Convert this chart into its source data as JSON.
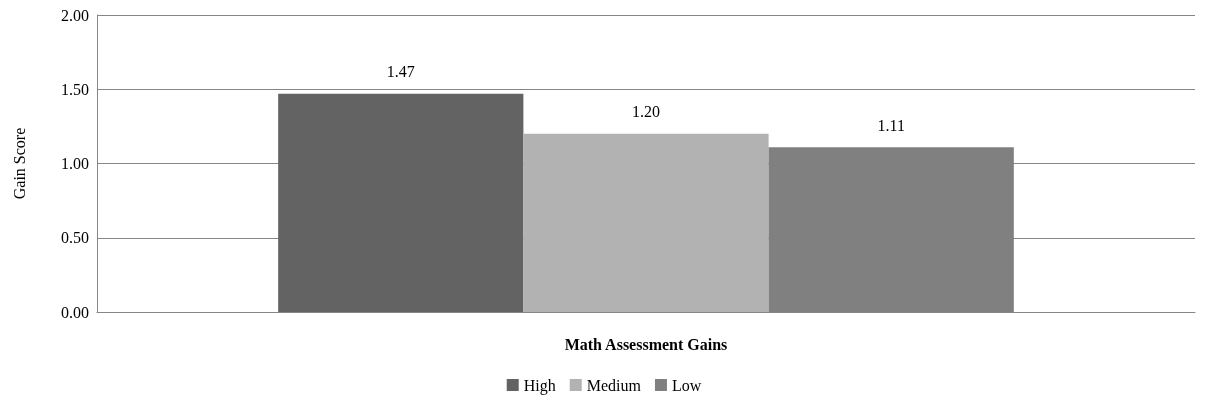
{
  "chart_data": {
    "type": "bar",
    "ylabel": "Gain Score",
    "categories": [
      "Math Assessment Gains"
    ],
    "series": [
      {
        "name": "High",
        "color": "#636363",
        "values": [
          1.47
        ],
        "value_labels": [
          "1.47"
        ]
      },
      {
        "name": "Medium",
        "color": "#b2b2b2",
        "values": [
          1.2
        ],
        "value_labels": [
          "1.20"
        ]
      },
      {
        "name": "Low",
        "color": "#808080",
        "values": [
          1.11
        ],
        "value_labels": [
          "1.11"
        ]
      }
    ],
    "ylim": [
      0,
      2
    ],
    "yticks": [
      {
        "value": 0,
        "label": "0.00"
      },
      {
        "value": 0.5,
        "label": "0.50"
      },
      {
        "value": 1,
        "label": "1.00"
      },
      {
        "value": 1.5,
        "label": "1.50"
      },
      {
        "value": 2,
        "label": "2.00"
      }
    ],
    "grid": "y",
    "legend": "bottom"
  }
}
